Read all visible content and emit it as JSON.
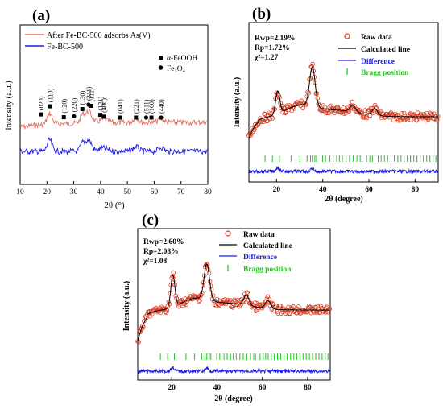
{
  "colors": {
    "raw": "#d63a1f",
    "calc": "#000000",
    "diff": "#1a1ae6",
    "bragg": "#22c322",
    "after_a": "#e07060",
    "febc_a": "#1a1ae6"
  },
  "chart_data": [
    {
      "type": "line",
      "panel_label": "(a)",
      "xlabel": "2θ (°)",
      "ylabel": "Intensity (a.u.)",
      "xlim": [
        10,
        80
      ],
      "xticks": [
        10,
        20,
        30,
        40,
        50,
        60,
        70,
        80
      ],
      "series": [
        {
          "name": "After Fe-BC-500 adsorbs As(V)",
          "color": "#e07060",
          "style": "noisy-line"
        },
        {
          "name": "Fe-BC-500",
          "color": "#1a1ae6",
          "style": "noisy-line"
        }
      ],
      "phase_legend": [
        {
          "marker": "square",
          "label": "α-FeOOH"
        },
        {
          "marker": "circle",
          "label": "Fe₃O₄"
        }
      ],
      "peak_labels": [
        {
          "x": 17.8,
          "label": "(020)",
          "marker": "square"
        },
        {
          "x": 21.2,
          "label": "(110)",
          "marker": "square"
        },
        {
          "x": 26.3,
          "label": "(120)",
          "marker": "square"
        },
        {
          "x": 30.1,
          "label": "(220)",
          "marker": "circle"
        },
        {
          "x": 33.2,
          "label": "(130)",
          "marker": "square"
        },
        {
          "x": 35.5,
          "label": "(311)",
          "marker": "circle"
        },
        {
          "x": 36.6,
          "label": "(111)",
          "marker": "square"
        },
        {
          "x": 39.9,
          "label": "(121)",
          "marker": "square"
        },
        {
          "x": 41.2,
          "label": "(400)",
          "marker": "square"
        },
        {
          "x": 47.2,
          "label": "(041)",
          "marker": "square"
        },
        {
          "x": 53.2,
          "label": "(221)",
          "marker": "square"
        },
        {
          "x": 57.0,
          "label": "(511)",
          "marker": "circle"
        },
        {
          "x": 59.0,
          "label": "(160)",
          "marker": "square"
        },
        {
          "x": 62.6,
          "label": "(440)",
          "marker": "circle"
        }
      ]
    },
    {
      "type": "line",
      "panel_label": "(b)",
      "xlabel": "2θ (degree)",
      "ylabel": "Intensity (a.u.)",
      "xlim": [
        8,
        90
      ],
      "xticks": [
        20,
        40,
        60,
        80
      ],
      "stats": [
        "Rwp=2.19%",
        "Rp=1.72%",
        "χ²=1.27"
      ],
      "legend": [
        "Raw data",
        "Calculated line",
        "Difference",
        "Bragg position"
      ],
      "peaks": [
        {
          "x": 20.5,
          "rel_intensity": 0.5
        },
        {
          "x": 35.5,
          "rel_intensity": 0.86
        },
        {
          "x": 53.0,
          "rel_intensity": 0.15
        },
        {
          "x": 62.5,
          "rel_intensity": 0.15
        }
      ]
    },
    {
      "type": "line",
      "panel_label": "(c)",
      "xlabel": "2θ (degree)",
      "ylabel": "Intensity (a.u.)",
      "xlim": [
        5,
        90
      ],
      "xticks": [
        20,
        40,
        60,
        80
      ],
      "stats": [
        "Rwp=2.60%",
        "Rp=2.08%",
        "χ²=1.08"
      ],
      "legend": [
        "Raw data",
        "Calculated line",
        "Difference",
        "Bragg position"
      ],
      "peaks": [
        {
          "x": 20.5,
          "rel_intensity": 0.8
        },
        {
          "x": 35.5,
          "rel_intensity": 0.88
        },
        {
          "x": 53.0,
          "rel_intensity": 0.25
        },
        {
          "x": 62.5,
          "rel_intensity": 0.2
        }
      ]
    }
  ]
}
